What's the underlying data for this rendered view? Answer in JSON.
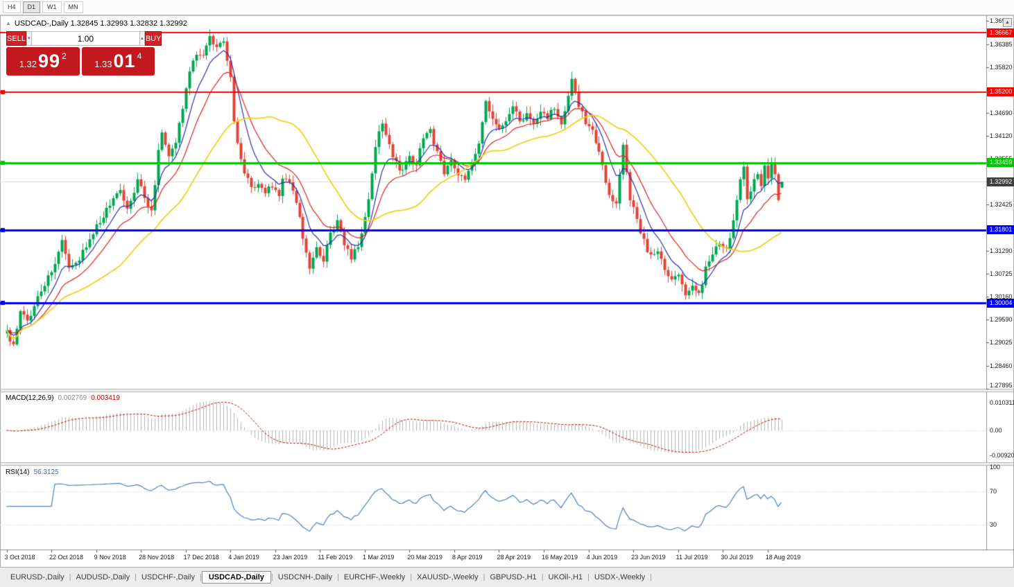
{
  "icons": {
    "collapse": "▲",
    "up_arrow": "▲",
    "down_arrow": "▼",
    "scroll_glyph": "▲",
    "tab_separator": "|"
  },
  "timeframe_toolbar": {
    "buttons": [
      "H4",
      "D1",
      "W1",
      "MN"
    ],
    "active": "D1"
  },
  "chart_header": {
    "title": "USDCAD-,Daily  1.32845 1.32993 1.32832 1.32992"
  },
  "one_click_trading": {
    "sell_label": "SELL",
    "buy_label": "BUY",
    "volume": "1.00",
    "sell_price": {
      "prefix": "1.32",
      "big": "99",
      "sup": "2"
    },
    "buy_price": {
      "prefix": "1.33",
      "big": "01",
      "sup": "4"
    },
    "button_color": "#d42127",
    "price_box_color": "#c2181e"
  },
  "chart_data": {
    "type": "candlestick",
    "symbol": "USDCAD-",
    "period": "Daily",
    "ohlc_current": {
      "open": 1.32845,
      "high": 1.32993,
      "low": 1.32832,
      "close": 1.32992
    },
    "bars": 226,
    "candle_colors": {
      "up": "#00a650",
      "down": "#e04438"
    },
    "moving_averages": [
      {
        "period": 8,
        "method": "ema",
        "color": "#2b2bb4"
      },
      {
        "period": 16,
        "method": "ema",
        "color": "#e02020"
      },
      {
        "period": 34,
        "method": "sma",
        "color": "#f0d020"
      }
    ],
    "y_axis_ticks": [
      1.36955,
      1.36385,
      1.3582,
      1.35255,
      1.3469,
      1.3412,
      1.33555,
      1.3299,
      1.32425,
      1.31855,
      1.3129,
      1.30725,
      1.3016,
      1.2959,
      1.29025,
      1.2846,
      1.27895
    ],
    "x_axis_labels": [
      {
        "text": "3 Oct 2018",
        "bar": 0
      },
      {
        "text": "22 Oct 2018",
        "bar": 13
      },
      {
        "text": "9 Nov 2018",
        "bar": 26
      },
      {
        "text": "28 Nov 2018",
        "bar": 39
      },
      {
        "text": "17 Dec 2018",
        "bar": 52
      },
      {
        "text": "4 Jan 2019",
        "bar": 65
      },
      {
        "text": "23 Jan 2019",
        "bar": 78
      },
      {
        "text": "11 Feb 2019",
        "bar": 91
      },
      {
        "text": "1 Mar 2019",
        "bar": 104
      },
      {
        "text": "20 Mar 2019",
        "bar": 117
      },
      {
        "text": "8 Apr 2019",
        "bar": 130
      },
      {
        "text": "28 Apr 2019",
        "bar": 143
      },
      {
        "text": "16 May 2019",
        "bar": 156
      },
      {
        "text": "4 Jun 2019",
        "bar": 169
      },
      {
        "text": "23 Jun 2019",
        "bar": 182
      },
      {
        "text": "11 Jul 2019",
        "bar": 195
      },
      {
        "text": "30 Jul 2019",
        "bar": 208
      },
      {
        "text": "18 Aug 2019",
        "bar": 221
      }
    ],
    "horizontal_lines": [
      {
        "price": 1.36667,
        "label": "1.36667",
        "color": "#ff0000",
        "width": 2,
        "left_marker": false
      },
      {
        "price": 1.352,
        "label": "1.35200",
        "color": "#ff0000",
        "width": 2,
        "left_marker": true
      },
      {
        "price": 1.33459,
        "label": "1.33459",
        "color": "#00c800",
        "width": 3,
        "left_marker": true
      },
      {
        "price": 1.31801,
        "label": "1.31801",
        "color": "#0000ff",
        "width": 3,
        "left_marker": true
      },
      {
        "price": 1.30004,
        "label": "1.30004",
        "color": "#0000ff",
        "width": 3,
        "left_marker": true
      }
    ],
    "bid_line": {
      "price": 1.32992,
      "label": "1.32992",
      "tag_color": "#3f3f3f",
      "line_color": "#dcdcdc"
    },
    "close_path_anchors": [
      [
        0,
        1.2925
      ],
      [
        2,
        1.2898
      ],
      [
        4,
        1.2975
      ],
      [
        6,
        1.2952
      ],
      [
        9,
        1.3012
      ],
      [
        12,
        1.3065
      ],
      [
        14,
        1.3092
      ],
      [
        16,
        1.3155
      ],
      [
        18,
        1.3085
      ],
      [
        21,
        1.3105
      ],
      [
        24,
        1.3165
      ],
      [
        27,
        1.3198
      ],
      [
        30,
        1.3245
      ],
      [
        33,
        1.3278
      ],
      [
        35,
        1.3228
      ],
      [
        38,
        1.3298
      ],
      [
        40,
        1.3262
      ],
      [
        42,
        1.3225
      ],
      [
        44,
        1.337
      ],
      [
        45,
        1.342
      ],
      [
        47,
        1.3355
      ],
      [
        49,
        1.3395
      ],
      [
        51,
        1.348
      ],
      [
        53,
        1.3575
      ],
      [
        55,
        1.362
      ],
      [
        57,
        1.3608
      ],
      [
        59,
        1.3655
      ],
      [
        61,
        1.3625
      ],
      [
        63,
        1.365
      ],
      [
        64,
        1.3598
      ],
      [
        65,
        1.355
      ],
      [
        66,
        1.3448
      ],
      [
        67,
        1.34
      ],
      [
        69,
        1.3318
      ],
      [
        71,
        1.3282
      ],
      [
        73,
        1.3302
      ],
      [
        75,
        1.327
      ],
      [
        77,
        1.3288
      ],
      [
        79,
        1.3268
      ],
      [
        80,
        1.3305
      ],
      [
        82,
        1.3302
      ],
      [
        84,
        1.3245
      ],
      [
        86,
        1.3165
      ],
      [
        88,
        1.3092
      ],
      [
        90,
        1.3142
      ],
      [
        92,
        1.3105
      ],
      [
        94,
        1.3168
      ],
      [
        96,
        1.3198
      ],
      [
        98,
        1.3148
      ],
      [
        100,
        1.3112
      ],
      [
        102,
        1.3145
      ],
      [
        104,
        1.321
      ],
      [
        105,
        1.3262
      ],
      [
        107,
        1.3385
      ],
      [
        109,
        1.3448
      ],
      [
        111,
        1.3392
      ],
      [
        113,
        1.3342
      ],
      [
        115,
        1.3325
      ],
      [
        117,
        1.3362
      ],
      [
        119,
        1.3335
      ],
      [
        121,
        1.3412
      ],
      [
        123,
        1.3425
      ],
      [
        125,
        1.3372
      ],
      [
        127,
        1.3325
      ],
      [
        129,
        1.3348
      ],
      [
        131,
        1.3322
      ],
      [
        133,
        1.3312
      ],
      [
        135,
        1.3345
      ],
      [
        137,
        1.3395
      ],
      [
        139,
        1.3502
      ],
      [
        141,
        1.3452
      ],
      [
        143,
        1.3422
      ],
      [
        145,
        1.3455
      ],
      [
        147,
        1.3482
      ],
      [
        149,
        1.3448
      ],
      [
        151,
        1.3462
      ],
      [
        153,
        1.3445
      ],
      [
        155,
        1.3472
      ],
      [
        157,
        1.3458
      ],
      [
        159,
        1.3482
      ],
      [
        161,
        1.3448
      ],
      [
        163,
        1.3505
      ],
      [
        164,
        1.3548
      ],
      [
        166,
        1.3482
      ],
      [
        168,
        1.3448
      ],
      [
        170,
        1.3425
      ],
      [
        171,
        1.3398
      ],
      [
        173,
        1.3342
      ],
      [
        175,
        1.3262
      ],
      [
        177,
        1.3245
      ],
      [
        179,
        1.3398
      ],
      [
        181,
        1.3258
      ],
      [
        183,
        1.3205
      ],
      [
        185,
        1.3152
      ],
      [
        187,
        1.3112
      ],
      [
        189,
        1.3135
      ],
      [
        191,
        1.3082
      ],
      [
        193,
        1.3062
      ],
      [
        195,
        1.3072
      ],
      [
        197,
        1.3025
      ],
      [
        199,
        1.3048
      ],
      [
        201,
        1.3018
      ],
      [
        203,
        1.3082
      ],
      [
        205,
        1.3125
      ],
      [
        207,
        1.3152
      ],
      [
        209,
        1.3132
      ],
      [
        211,
        1.3205
      ],
      [
        213,
        1.3305
      ],
      [
        214,
        1.3335
      ],
      [
        215,
        1.3262
      ],
      [
        217,
        1.3298
      ],
      [
        218,
        1.3322
      ],
      [
        219,
        1.3285
      ],
      [
        220,
        1.3335
      ],
      [
        221,
        1.3305
      ],
      [
        222,
        1.3338
      ],
      [
        223,
        1.3312
      ],
      [
        224,
        1.3252
      ],
      [
        225,
        1.3299
      ]
    ],
    "indicators": {
      "macd": {
        "name": "MACD(12,26,9)",
        "fast": 12,
        "slow": 26,
        "signal": 9,
        "main_value": "0.002769",
        "signal_value": "0.003419",
        "axis_labels": [
          "0.010311",
          "0.00",
          "-0.009203"
        ],
        "histogram_color": "#b4b4b4",
        "signal_color": "#c00000"
      },
      "rsi": {
        "name": "RSI(14)",
        "period": 14,
        "value": "56.3125",
        "axis_labels": [
          100,
          70,
          30
        ],
        "levels": [
          70,
          30
        ],
        "line_color": "#4f81bd"
      }
    }
  },
  "bottom_tabs": {
    "active": "USDCAD-,Daily",
    "items": [
      "EURUSD-,Daily",
      "AUDUSD-,Daily",
      "USDCHF-,Daily",
      "USDCAD-,Daily",
      "USDCNH-,Daily",
      "EURCHF-,Weekly",
      "XAUUSD-,Weekly",
      "GBPUSD-,H1",
      "UKOil-,H1",
      "USDX-,Weekly"
    ]
  }
}
